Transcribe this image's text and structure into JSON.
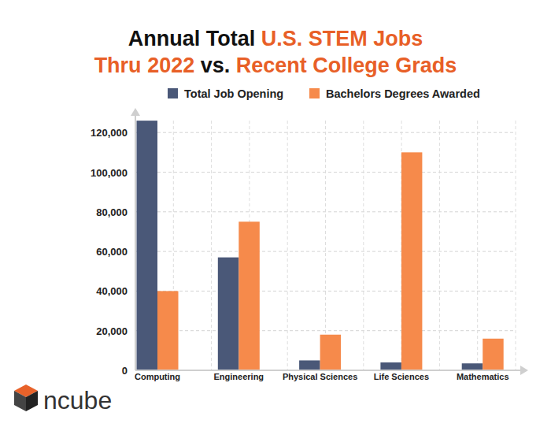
{
  "chart_data": {
    "type": "bar",
    "title": "Annual Total U.S. STEM Jobs Thru 2022 vs. Recent College Grads",
    "logo": "ncube",
    "categories": [
      "Computing",
      "Engineering",
      "Physical Sciences",
      "Life Sciences",
      "Mathematics"
    ],
    "series": [
      {
        "name": "Total Job Opening",
        "color": "#4a5878",
        "values": [
          126000,
          57000,
          5000,
          4000,
          3500
        ]
      },
      {
        "name": "Bachelors Degrees Awarded",
        "color": "#f68a4b",
        "values": [
          40000,
          75000,
          18000,
          110000,
          16000
        ]
      }
    ],
    "ylim": [
      0,
      130000
    ],
    "yticks": [
      0,
      {
        "value": 20000,
        "label": "20,000"
      },
      {
        "value": 40000,
        "label": "40,000"
      },
      {
        "value": 60000,
        "label": "60,000"
      },
      {
        "value": 80000,
        "label": "80,000"
      },
      {
        "value": 100000,
        "label": "100,000"
      },
      {
        "value": 120000,
        "label": "120,000"
      }
    ],
    "grid": true,
    "legend": "top"
  }
}
